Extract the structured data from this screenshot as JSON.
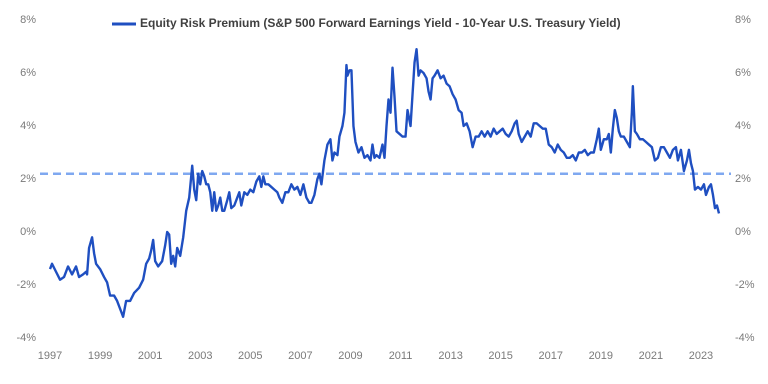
{
  "chart_data": {
    "type": "line",
    "series": [
      {
        "name": "Equity Risk Premium (S&P 500 Forward Earnings Yield - 10-Year U.S. Treasury Yield)",
        "color": "#1f4fc1",
        "values": [
          -1.4,
          -1.2,
          -1.5,
          -1.8,
          -1.7,
          -1.3,
          -1.6,
          -1.3,
          -1.7,
          -1.6,
          -1.5,
          -1.6,
          -0.6,
          -0.2,
          -0.8,
          -1.2,
          -1.4,
          -1.7,
          -1.9,
          -2.4,
          -2.4,
          -2.6,
          -3.0,
          -3.2,
          -2.6,
          -2.6,
          -2.3,
          -2.1,
          -1.8,
          -1.2,
          -1.0,
          -0.7,
          -0.3,
          -1.1,
          -1.3,
          -1.1,
          -0.5,
          0.0,
          -0.1,
          -1.2,
          -0.9,
          -1.3,
          -0.6,
          -0.9,
          -0.2,
          0.8,
          1.3,
          2.5,
          1.6,
          1.2,
          2.2,
          1.8,
          2.3,
          2.1,
          1.8,
          1.8,
          1.5,
          0.8,
          1.5,
          0.8,
          1.0,
          1.3,
          0.8,
          0.8,
          1.2,
          1.5,
          0.9,
          1.0,
          1.3,
          1.5,
          1.0,
          1.5,
          1.4,
          1.6,
          1.5,
          1.9,
          2.1,
          1.7,
          2.1,
          1.8,
          1.8,
          1.7,
          1.6,
          1.5,
          1.3,
          1.1,
          1.5,
          1.5,
          1.8,
          1.6,
          1.7,
          1.4,
          1.8,
          1.3,
          1.1,
          1.1,
          1.4,
          2.0,
          2.2,
          1.8,
          2.7,
          3.3,
          3.5,
          2.7,
          3.0,
          2.9,
          3.6,
          4.0,
          4.5,
          6.3,
          5.9,
          6.1,
          6.1,
          4.0,
          3.4,
          3.0,
          3.2,
          2.8,
          2.9,
          2.7,
          3.3,
          2.8,
          2.9,
          2.8,
          3.3,
          2.8,
          4.0,
          5.0,
          4.5,
          6.2,
          5.1,
          3.8,
          3.7,
          3.6,
          3.6,
          4.6,
          4.0,
          5.2,
          6.4,
          6.9,
          5.9,
          6.1,
          6.0,
          5.8,
          5.3,
          5.0,
          5.8,
          5.9,
          6.1,
          5.8,
          5.9,
          5.6,
          5.5,
          5.2,
          5.0,
          4.6,
          4.5,
          4.0,
          4.1,
          3.8,
          3.2,
          3.6,
          3.6,
          3.8,
          3.6,
          3.8,
          3.6,
          3.9,
          3.7,
          3.8,
          3.9,
          3.7,
          3.6,
          3.8,
          4.1,
          4.2,
          3.7,
          3.4,
          3.6,
          3.8,
          3.6,
          4.1,
          4.1,
          4.0,
          3.9,
          3.9,
          3.3,
          3.2,
          3.0,
          3.3,
          3.1,
          3.0,
          2.8,
          2.8,
          2.9,
          2.7,
          3.0,
          3.0,
          3.1,
          2.9,
          3.0,
          3.0,
          3.5,
          3.9,
          3.1,
          3.5,
          3.5,
          3.7,
          3.0,
          3.9,
          4.6,
          4.3,
          3.8,
          3.6,
          3.6,
          3.4,
          3.2,
          4.5,
          5.5,
          3.8,
          3.7,
          3.5,
          3.5,
          3.4,
          3.3,
          3.2,
          2.7,
          2.8,
          3.2,
          3.2,
          3.0,
          2.8,
          3.1,
          3.2,
          2.7,
          3.1,
          2.3,
          2.7,
          3.1,
          2.6,
          2.3,
          1.6,
          1.7,
          1.6,
          1.8,
          1.4,
          1.7,
          1.8,
          1.4,
          0.9,
          1.0,
          0.7
        ]
      }
    ],
    "x": [
      1997.0,
      1997.08,
      1997.24,
      1997.4,
      1997.56,
      1997.72,
      1997.88,
      1998.04,
      1998.16,
      1998.32,
      1998.44,
      1998.48,
      1998.56,
      1998.68,
      1998.76,
      1998.84,
      1999.0,
      1999.16,
      1999.28,
      1999.4,
      1999.56,
      1999.68,
      1999.84,
      1999.92,
      2000.04,
      2000.2,
      2000.36,
      2000.56,
      2000.72,
      2000.84,
      2000.96,
      2001.04,
      2001.12,
      2001.2,
      2001.32,
      2001.48,
      2001.6,
      2001.68,
      2001.76,
      2001.84,
      2001.92,
      2002.0,
      2002.08,
      2002.2,
      2002.32,
      2002.44,
      2002.56,
      2002.68,
      2002.76,
      2002.84,
      2002.92,
      2003.0,
      2003.08,
      2003.16,
      2003.24,
      2003.32,
      2003.4,
      2003.48,
      2003.56,
      2003.64,
      2003.72,
      2003.8,
      2003.88,
      2003.96,
      2004.08,
      2004.16,
      2004.24,
      2004.36,
      2004.48,
      2004.56,
      2004.64,
      2004.76,
      2004.88,
      2005.0,
      2005.12,
      2005.24,
      2005.36,
      2005.44,
      2005.52,
      2005.6,
      2005.72,
      2005.84,
      2005.96,
      2006.08,
      2006.16,
      2006.28,
      2006.4,
      2006.52,
      2006.64,
      2006.76,
      2006.88,
      2007.0,
      2007.12,
      2007.24,
      2007.36,
      2007.44,
      2007.56,
      2007.68,
      2007.76,
      2007.84,
      2007.96,
      2008.08,
      2008.2,
      2008.28,
      2008.36,
      2008.48,
      2008.56,
      2008.68,
      2008.76,
      2008.84,
      2008.88,
      2008.96,
      2009.04,
      2009.12,
      2009.2,
      2009.32,
      2009.44,
      2009.56,
      2009.68,
      2009.8,
      2009.88,
      2009.96,
      2010.04,
      2010.16,
      2010.28,
      2010.36,
      2010.44,
      2010.52,
      2010.6,
      2010.68,
      2010.76,
      2010.84,
      2010.96,
      2011.08,
      2011.2,
      2011.28,
      2011.4,
      2011.48,
      2011.56,
      2011.64,
      2011.72,
      2011.8,
      2011.92,
      2012.04,
      2012.12,
      2012.2,
      2012.28,
      2012.36,
      2012.48,
      2012.6,
      2012.72,
      2012.84,
      2012.96,
      2013.08,
      2013.2,
      2013.32,
      2013.44,
      2013.52,
      2013.64,
      2013.76,
      2013.88,
      2014.0,
      2014.12,
      2014.24,
      2014.36,
      2014.48,
      2014.6,
      2014.72,
      2014.84,
      2014.96,
      2015.08,
      2015.2,
      2015.32,
      2015.44,
      2015.56,
      2015.64,
      2015.72,
      2015.84,
      2015.96,
      2016.08,
      2016.2,
      2016.32,
      2016.44,
      2016.56,
      2016.68,
      2016.8,
      2016.92,
      2017.04,
      2017.16,
      2017.28,
      2017.4,
      2017.52,
      2017.64,
      2017.76,
      2017.88,
      2018.0,
      2018.12,
      2018.24,
      2018.36,
      2018.48,
      2018.6,
      2018.72,
      2018.84,
      2018.92,
      2019.0,
      2019.12,
      2019.24,
      2019.32,
      2019.4,
      2019.48,
      2019.56,
      2019.64,
      2019.72,
      2019.8,
      2019.92,
      2020.04,
      2020.16,
      2020.24,
      2020.28,
      2020.36,
      2020.44,
      2020.56,
      2020.68,
      2020.8,
      2020.92,
      2021.04,
      2021.16,
      2021.28,
      2021.4,
      2021.52,
      2021.64,
      2021.76,
      2021.88,
      2022.0,
      2022.08,
      2022.2,
      2022.32,
      2022.44,
      2022.52,
      2022.6,
      2022.68,
      2022.76,
      2022.88,
      2023.0,
      2023.12,
      2023.2,
      2023.32,
      2023.4,
      2023.48,
      2023.56,
      2023.64,
      2023.72
    ],
    "xlim": [
      1996.6,
      2024.2
    ],
    "xticks": [
      1997,
      1999,
      2001,
      2003,
      2005,
      2007,
      2009,
      2011,
      2013,
      2015,
      2017,
      2019,
      2021,
      2023
    ],
    "ylim": [
      -4,
      8
    ],
    "yticks": [
      {
        "value": -4,
        "label": "-4%"
      },
      {
        "value": -2,
        "label": "-2%"
      },
      {
        "value": 0,
        "label": "0%"
      },
      {
        "value": 2,
        "label": "2%"
      },
      {
        "value": 4,
        "label": "4%"
      },
      {
        "value": 6,
        "label": "6%"
      },
      {
        "value": 8,
        "label": "8%"
      }
    ],
    "y2lim": [
      -4,
      8
    ],
    "y2ticks": [
      {
        "value": -4,
        "label": "-4%"
      },
      {
        "value": -2,
        "label": "-2%"
      },
      {
        "value": 0,
        "label": "0%"
      },
      {
        "value": 2,
        "label": "2%"
      },
      {
        "value": 4,
        "label": "4%"
      },
      {
        "value": 6,
        "label": "6%"
      },
      {
        "value": 8,
        "label": "8%"
      }
    ],
    "reference_line": 2.2,
    "reference_color": "#7fa8f0",
    "legend": "top",
    "grid": false
  }
}
